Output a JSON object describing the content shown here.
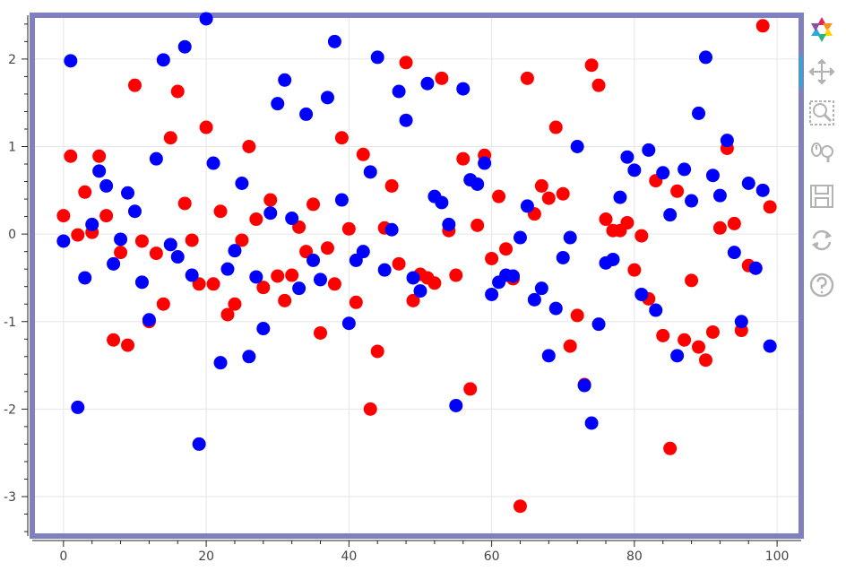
{
  "colors": {
    "frame": "#8080c0",
    "series_a": "#ff0000",
    "series_b": "#0000ff",
    "grid": "#e6e6e6",
    "axis": "#222222",
    "tick_text": "#444444",
    "tool_icon": "#b3b3b3",
    "tool_active": "#26aae1"
  },
  "toolbar": {
    "items": [
      {
        "name": "bokeh-logo-icon",
        "interactable": true
      },
      {
        "name": "pan-icon",
        "interactable": true,
        "active": true
      },
      {
        "name": "box-zoom-icon",
        "interactable": true
      },
      {
        "name": "wheel-zoom-icon",
        "interactable": true
      },
      {
        "name": "save-icon",
        "interactable": true
      },
      {
        "name": "reset-icon",
        "interactable": true
      },
      {
        "name": "help-icon",
        "interactable": true
      }
    ]
  },
  "chart_data": {
    "type": "scatter",
    "xlim": [
      -4,
      103
    ],
    "ylim": [
      -3.42,
      2.47
    ],
    "grid": true,
    "legend": "none",
    "x_ticks": [
      0,
      20,
      40,
      60,
      80,
      100
    ],
    "x_tick_labels": [
      "0",
      "20",
      "40",
      "60",
      "80",
      "100"
    ],
    "y_ticks": [
      -3,
      -2,
      -1,
      0,
      1,
      2
    ],
    "y_tick_labels": [
      "-3",
      "-2",
      "-1",
      "0",
      "1",
      "2"
    ],
    "series": [
      {
        "color": "#ff0000",
        "x": [
          0,
          1,
          2,
          3,
          4,
          5,
          6,
          7,
          8,
          9,
          10,
          11,
          12,
          13,
          14,
          15,
          16,
          17,
          18,
          19,
          20,
          21,
          22,
          23,
          24,
          25,
          26,
          27,
          28,
          29,
          30,
          31,
          32,
          33,
          34,
          35,
          36,
          37,
          38,
          39,
          40,
          41,
          42,
          43,
          44,
          45,
          46,
          47,
          48,
          49,
          50,
          51,
          52,
          53,
          54,
          55,
          56,
          57,
          58,
          59,
          60,
          61,
          62,
          63,
          64,
          65,
          66,
          67,
          68,
          69,
          70,
          71,
          72,
          73,
          74,
          75,
          76,
          77,
          78,
          79,
          80,
          81,
          82,
          83,
          84,
          85,
          86,
          87,
          88,
          89,
          90,
          91,
          92,
          93,
          94,
          95,
          96,
          97,
          98,
          99
        ],
        "y": [
          0.21,
          0.89,
          -0.01,
          0.48,
          0.02,
          0.89,
          0.21,
          -1.21,
          -0.21,
          -1.27,
          1.7,
          -0.08,
          -1.0,
          -0.22,
          -0.8,
          1.1,
          1.63,
          0.35,
          -0.07,
          -0.57,
          1.22,
          -0.57,
          0.26,
          -0.92,
          -0.8,
          -0.07,
          1.0,
          0.17,
          -0.61,
          0.39,
          -0.48,
          -0.76,
          -0.47,
          0.08,
          -0.2,
          0.34,
          -1.13,
          -0.16,
          -0.57,
          1.1,
          0.06,
          -0.78,
          0.91,
          -2.0,
          -1.34,
          0.07,
          0.55,
          -0.34,
          1.96,
          -0.76,
          -0.46,
          -0.5,
          -0.56,
          1.78,
          0.04,
          -0.47,
          0.86,
          -1.77,
          0.1,
          0.9,
          -0.28,
          0.43,
          -0.17,
          -0.51,
          -3.11,
          1.78,
          0.23,
          0.55,
          0.41,
          1.22,
          0.46,
          -1.28,
          -0.93,
          -1.72,
          1.93,
          1.7,
          0.17,
          0.04,
          0.04,
          0.13,
          -0.41,
          -0.02,
          -0.74,
          0.61,
          -1.16,
          -2.45,
          0.49,
          -1.21,
          -0.53,
          -1.29,
          -1.44,
          -1.12,
          0.07,
          0.98,
          0.12,
          -1.1,
          -0.36,
          -0.39,
          2.38,
          0.31
        ]
      },
      {
        "color": "#0000ff",
        "x": [
          0,
          1,
          2,
          3,
          4,
          5,
          6,
          7,
          8,
          9,
          10,
          11,
          12,
          13,
          14,
          15,
          16,
          17,
          18,
          19,
          20,
          21,
          22,
          23,
          24,
          25,
          26,
          27,
          28,
          29,
          30,
          31,
          32,
          33,
          34,
          35,
          36,
          37,
          38,
          39,
          40,
          41,
          42,
          43,
          44,
          45,
          46,
          47,
          48,
          49,
          50,
          51,
          52,
          53,
          54,
          55,
          56,
          57,
          58,
          59,
          60,
          61,
          62,
          63,
          64,
          65,
          66,
          67,
          68,
          69,
          70,
          71,
          72,
          73,
          74,
          75,
          76,
          77,
          78,
          79,
          80,
          81,
          82,
          83,
          84,
          85,
          86,
          87,
          88,
          89,
          90,
          91,
          92,
          93,
          94,
          95,
          96,
          97,
          98,
          99
        ],
        "y": [
          -0.08,
          1.98,
          -1.98,
          -0.5,
          0.11,
          0.72,
          0.55,
          -0.34,
          -0.06,
          0.47,
          0.26,
          -0.55,
          -0.98,
          0.86,
          1.99,
          -0.12,
          -0.26,
          2.14,
          -0.47,
          -2.4,
          2.46,
          0.81,
          -1.47,
          -0.4,
          -0.19,
          0.58,
          -1.4,
          -0.49,
          -1.08,
          0.24,
          1.49,
          1.76,
          0.18,
          -0.62,
          1.37,
          -0.3,
          -0.52,
          1.56,
          2.2,
          0.39,
          -1.02,
          -0.3,
          -0.2,
          0.71,
          2.02,
          -0.41,
          0.05,
          1.63,
          1.3,
          -0.5,
          -0.65,
          1.72,
          0.43,
          0.36,
          0.11,
          -1.96,
          1.66,
          0.62,
          0.57,
          0.81,
          -0.69,
          -0.55,
          -0.47,
          -0.48,
          -0.04,
          0.32,
          -0.75,
          -0.62,
          -1.39,
          -0.85,
          -0.27,
          -0.04,
          1.0,
          -1.73,
          -2.16,
          -1.03,
          -0.33,
          -0.29,
          0.42,
          0.88,
          0.73,
          -0.69,
          0.96,
          -0.87,
          0.7,
          0.22,
          -1.39,
          0.74,
          0.38,
          1.38,
          2.02,
          0.67,
          0.44,
          1.07,
          -0.21,
          -1.0,
          0.58,
          -0.39,
          0.5,
          -1.28
        ]
      }
    ]
  }
}
